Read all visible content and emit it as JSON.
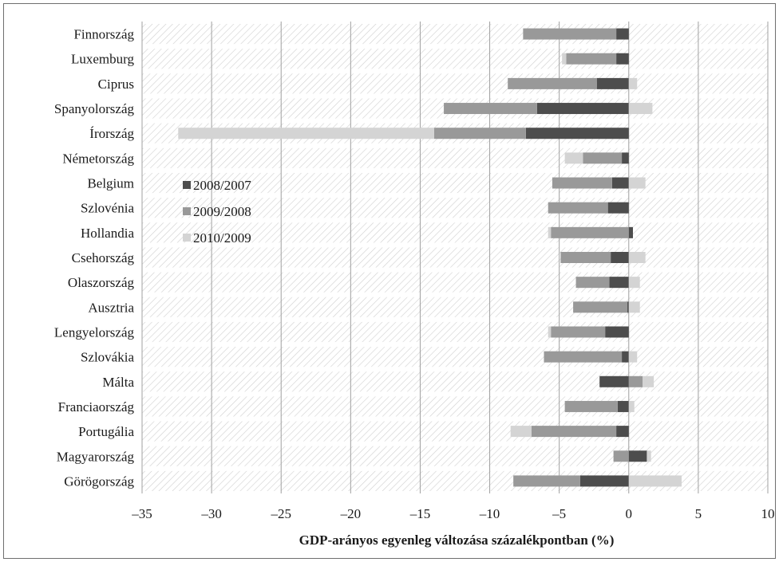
{
  "chart_data": {
    "type": "bar",
    "orientation": "horizontal",
    "stacked": true,
    "title": "",
    "xlabel": "GDP-arányos egyenleg változása százalékpontban (%)",
    "ylabel": "",
    "xlim": [
      -35,
      10
    ],
    "xticks": [
      -35,
      -30,
      -25,
      -20,
      -15,
      -10,
      -5,
      0,
      5,
      10
    ],
    "xtick_labels": [
      "–35",
      "–30",
      "–25",
      "–20",
      "–15",
      "–10",
      "–5",
      "0",
      "5",
      "10"
    ],
    "grid": "vertical",
    "legend_position": "left, inside plot",
    "categories": [
      "Finnország",
      "Luxemburg",
      "Ciprus",
      "Spanyolország",
      "Írország",
      "Németország",
      "Belgium",
      "Szlovénia",
      "Hollandia",
      "Csehország",
      "Olaszország",
      "Ausztria",
      "Lengyelország",
      "Szlovákia",
      "Málta",
      "Franciaország",
      "Portugália",
      "Magyarország",
      "Görögország"
    ],
    "series": [
      {
        "name": "2008/2007",
        "color": "#4d4d4d",
        "values": [
          -0.9,
          -0.9,
          -2.3,
          -6.6,
          -7.4,
          -0.5,
          -1.2,
          -1.5,
          0.3,
          -1.3,
          -1.4,
          -0.1,
          -1.7,
          -0.5,
          -2.1,
          -0.8,
          -0.9,
          1.3,
          -3.5
        ]
      },
      {
        "name": "2009/2008",
        "color": "#999999",
        "values": [
          -6.7,
          -3.6,
          -6.4,
          -6.7,
          -6.6,
          -2.8,
          -4.3,
          -4.3,
          -5.6,
          -3.6,
          -2.4,
          -3.9,
          -3.9,
          -5.6,
          1.0,
          -3.8,
          -6.1,
          -1.1,
          -4.8
        ]
      },
      {
        "name": "2010/2009",
        "color": "#d4d4d4",
        "values": [
          0.0,
          -0.3,
          0.6,
          1.7,
          -18.4,
          -1.3,
          1.2,
          0.0,
          -0.2,
          1.2,
          0.8,
          0.8,
          -0.2,
          0.6,
          0.8,
          0.4,
          -1.5,
          0.3,
          3.8
        ]
      }
    ]
  }
}
